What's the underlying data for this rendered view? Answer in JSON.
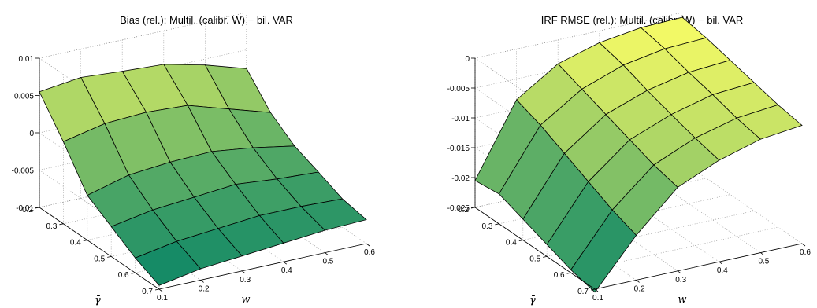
{
  "chart_data": [
    {
      "type": "surface",
      "title": "Bias (rel.): Multil. (calibr. W) − bil. VAR",
      "xlabel": "w̄",
      "ylabel": "γ̄",
      "zlabel": "",
      "x_ticks": [
        "0.1",
        "0.2",
        "0.3",
        "0.4",
        "0.5",
        "0.6"
      ],
      "y_ticks": [
        "0.2",
        "0.3",
        "0.4",
        "0.5",
        "0.6",
        "0.7"
      ],
      "z_ticks": [
        "-0.01",
        "-0.005",
        "0",
        "0.005",
        "0.01"
      ],
      "x_values": [
        0.1,
        0.2,
        0.3,
        0.4,
        0.5,
        0.6
      ],
      "y_values": [
        0.2,
        0.3,
        0.4,
        0.5,
        0.6,
        0.7
      ],
      "xlim": [
        0.1,
        0.6
      ],
      "ylim": [
        0.2,
        0.7
      ],
      "zlim": [
        -0.01,
        0.01
      ],
      "grid": true,
      "z": [
        [
          0.0055,
          0.0062,
          0.0058,
          0.0055,
          0.0042,
          0.0025
        ],
        [
          0.001,
          0.0022,
          0.0025,
          0.0022,
          0.0005,
          -0.0012
        ],
        [
          -0.004,
          -0.0025,
          -0.002,
          -0.0018,
          -0.0025,
          -0.0035
        ],
        [
          -0.006,
          -0.005,
          -0.0045,
          -0.004,
          -0.0045,
          -0.0048
        ],
        [
          -0.008,
          -0.007,
          -0.0065,
          -0.006,
          -0.006,
          -0.0062
        ],
        [
          -0.0095,
          -0.0085,
          -0.008,
          -0.0075,
          -0.007,
          -0.0068
        ]
      ]
    },
    {
      "type": "surface",
      "title": "IRF RMSE (rel.): Multil. (calibr. W) − bil. VAR",
      "xlabel": "w̄",
      "ylabel": "γ̄",
      "zlabel": "",
      "x_ticks": [
        "0.1",
        "0.2",
        "0.3",
        "0.4",
        "0.5",
        "0.6"
      ],
      "y_ticks": [
        "0.2",
        "0.3",
        "0.4",
        "0.5",
        "0.6",
        "0.7"
      ],
      "z_ticks": [
        "-0.025",
        "-0.02",
        "-0.015",
        "-0.01",
        "-0.005",
        "0"
      ],
      "x_values": [
        0.1,
        0.2,
        0.3,
        0.4,
        0.5,
        0.6
      ],
      "y_values": [
        0.2,
        0.3,
        0.4,
        0.5,
        0.6,
        0.7
      ],
      "xlim": [
        0.1,
        0.6
      ],
      "ylim": [
        0.2,
        0.7
      ],
      "zlim": [
        -0.025,
        0.0
      ],
      "grid": true,
      "z": [
        [
          -0.0205,
          -0.0085,
          -0.004,
          -0.002,
          -0.001,
          -0.0008
        ],
        [
          -0.02,
          -0.01,
          -0.0055,
          -0.003,
          -0.0018,
          -0.0015
        ],
        [
          -0.0215,
          -0.012,
          -0.007,
          -0.0045,
          -0.003,
          -0.0025
        ],
        [
          -0.023,
          -0.014,
          -0.0085,
          -0.0058,
          -0.004,
          -0.0035
        ],
        [
          -0.0245,
          -0.016,
          -0.01,
          -0.007,
          -0.0052,
          -0.0045
        ],
        [
          -0.0255,
          -0.0175,
          -0.011,
          -0.008,
          -0.006,
          -0.0052
        ]
      ]
    }
  ]
}
